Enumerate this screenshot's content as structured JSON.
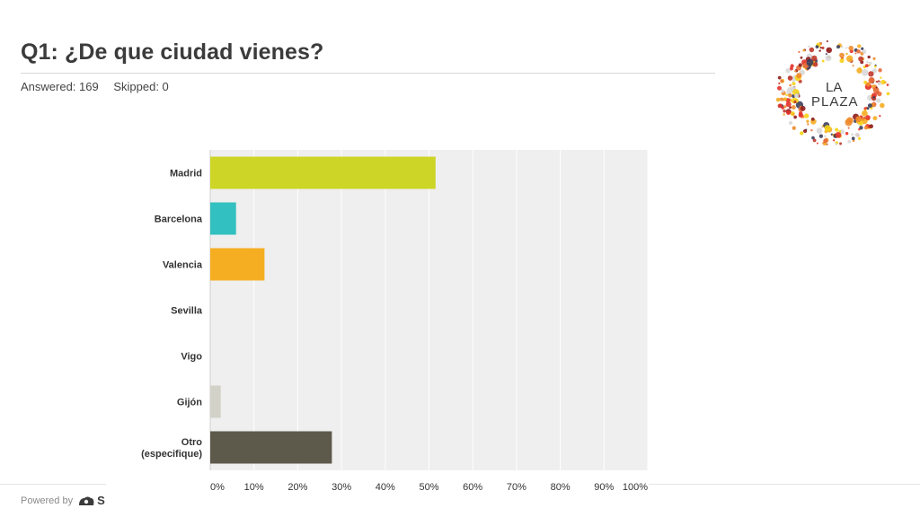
{
  "header": {
    "title": "Q1: ¿De que ciudad vienes?",
    "answered": "Answered: 169",
    "skipped": "Skipped: 0"
  },
  "logo": {
    "line1": "LA",
    "line2": "PLAZA",
    "icon": "la-plaza-dot-ring-logo"
  },
  "footer": {
    "powered_by": "Powered by",
    "brand_letter": "S",
    "brand_icon": "surveymonkey-icon",
    "brand_icon_color": "#3b3b3b"
  },
  "chart_data": {
    "type": "bar",
    "orientation": "horizontal",
    "categories": [
      "Madrid",
      "Barcelona",
      "Valencia",
      "Sevilla",
      "Vigo",
      "Gijón",
      "Otro (especifique)"
    ],
    "values": [
      51.5,
      5.9,
      12.4,
      0,
      0,
      2.4,
      27.8
    ],
    "colors": [
      "#cdd527",
      "#33c0c0",
      "#f5ad22",
      "#cdd527",
      "#cdd527",
      "#d2d2c8",
      "#5d5a4b"
    ],
    "xlim": [
      0,
      100
    ],
    "xticks": [
      "0%",
      "10%",
      "20%",
      "30%",
      "40%",
      "50%",
      "60%",
      "70%",
      "80%",
      "90%",
      "100%"
    ],
    "xlabel": "",
    "ylabel": "",
    "grid": true,
    "background": "#efefef"
  }
}
